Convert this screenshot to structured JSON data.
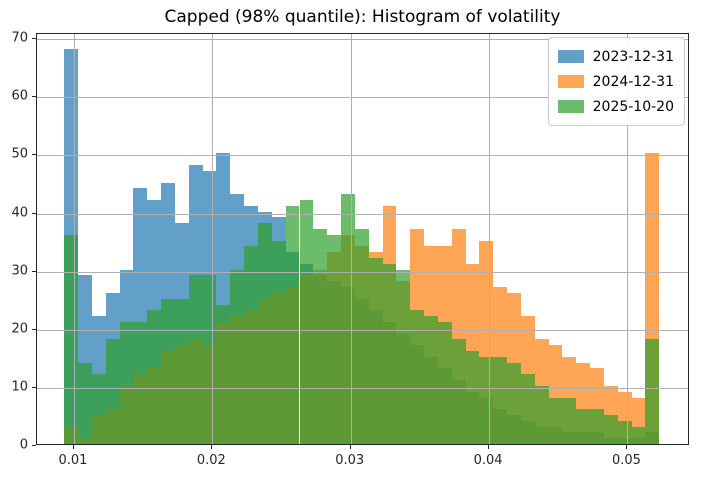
{
  "title": "Capped (98% quantile): Histogram of volatility",
  "legend": {
    "position": "upper-right",
    "entries": [
      {
        "label": "2023-12-31",
        "color": "#1f77b4"
      },
      {
        "label": "2024-12-31",
        "color": "#ff7f0e"
      },
      {
        "label": "2025-10-20",
        "color": "#2ca02c"
      }
    ]
  },
  "colors": {
    "background": "#ffffff",
    "grid": "#b0b0b0",
    "spine": "#262626",
    "legend_border": "#cccccc",
    "blue_fill_composited": "#639fca",
    "orange_fill_composited": "#ffa557",
    "green_fill_composited": "#6bbc6b"
  },
  "chart_data": {
    "type": "bar",
    "subtype": "overlaid-histogram",
    "title": "Capped (98% quantile): Histogram of volatility",
    "xlabel": "",
    "ylabel": "",
    "grid": true,
    "grid_on_top_of_bars": true,
    "legend_position": "upper right",
    "alpha": 0.7,
    "bin_start": 0.0093,
    "bin_width": 0.001,
    "n_bins": 43,
    "xlim": [
      0.00733,
      0.05452
    ],
    "ylim": [
      0,
      70.9
    ],
    "x_ticks": [
      {
        "v": 0.01,
        "label": "0.01"
      },
      {
        "v": 0.02,
        "label": "0.02"
      },
      {
        "v": 0.03,
        "label": "0.03"
      },
      {
        "v": 0.04,
        "label": "0.04"
      },
      {
        "v": 0.05,
        "label": "0.05"
      }
    ],
    "y_ticks": [
      {
        "v": 0,
        "label": "0"
      },
      {
        "v": 10,
        "label": "10"
      },
      {
        "v": 20,
        "label": "20"
      },
      {
        "v": 30,
        "label": "30"
      },
      {
        "v": 40,
        "label": "40"
      },
      {
        "v": 50,
        "label": "50"
      },
      {
        "v": 60,
        "label": "60"
      },
      {
        "v": 70,
        "label": "70"
      }
    ],
    "series": [
      {
        "name": "2023-12-31",
        "color": "#1f77b4",
        "values": [
          68,
          29,
          22,
          26,
          30,
          44,
          42,
          45,
          38,
          48,
          47,
          50,
          43,
          41,
          40,
          39,
          33,
          31,
          29,
          28,
          27,
          25,
          23,
          21,
          19,
          17,
          15,
          13,
          11,
          9,
          8,
          6,
          5,
          4,
          3,
          3,
          2,
          2,
          2,
          1,
          1,
          1,
          2
        ]
      },
      {
        "name": "2024-12-31",
        "color": "#ff7f0e",
        "values": [
          3,
          1,
          5,
          6,
          10,
          12,
          13,
          16,
          17,
          18,
          17,
          21,
          22,
          23,
          25,
          26,
          27,
          29,
          30,
          33,
          36,
          34,
          33,
          41,
          28,
          37,
          34,
          34,
          37,
          31,
          35,
          27,
          26,
          22,
          18,
          17,
          15,
          14,
          13,
          10,
          9,
          8,
          50
        ]
      },
      {
        "name": "2025-10-20",
        "color": "#2ca02c",
        "values": [
          36,
          14,
          12,
          18,
          21,
          21,
          23,
          25,
          25,
          29,
          29,
          24,
          30,
          34,
          38,
          35,
          41,
          42,
          37,
          36,
          43,
          37,
          32,
          31,
          30,
          23,
          22,
          21,
          18,
          16,
          15,
          15,
          14,
          12,
          10,
          8,
          8,
          6,
          6,
          5,
          4,
          3,
          18
        ]
      }
    ]
  }
}
